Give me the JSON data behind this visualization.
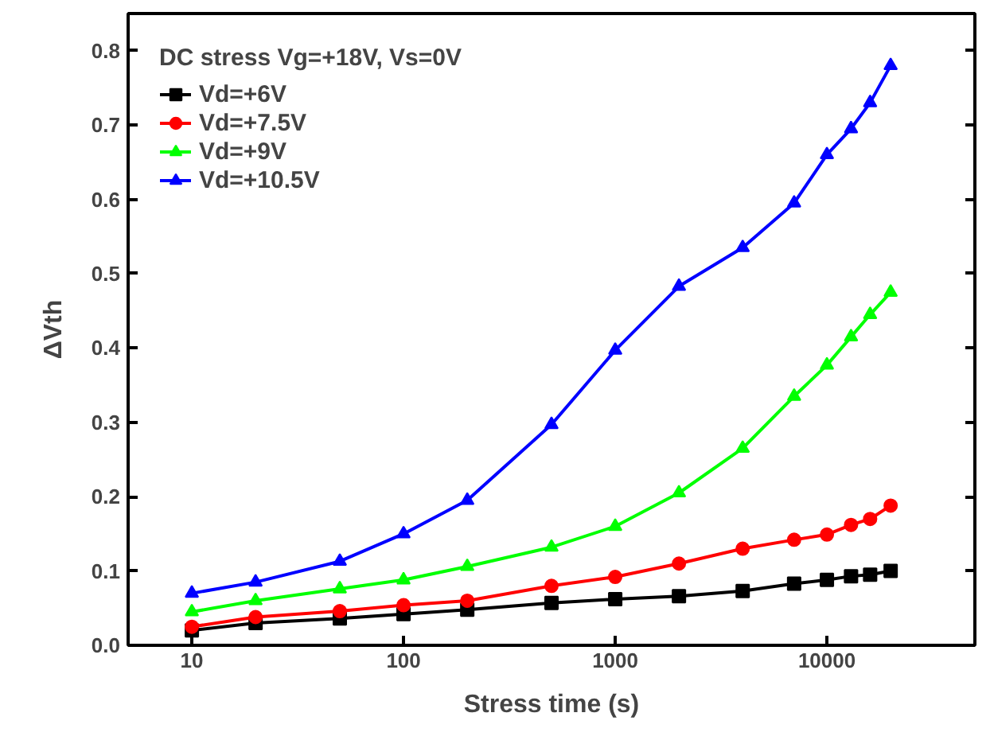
{
  "chart_data": {
    "type": "line",
    "xlabel": "Stress time (s)",
    "ylabel": "ΔVth",
    "legend_title": "DC stress Vg=+18V, Vs=0V",
    "x": [
      10,
      20,
      50,
      100,
      200,
      500,
      1000,
      2000,
      4000,
      7000,
      10000,
      13000,
      16000,
      20000
    ],
    "series": [
      {
        "name": "Vd=+6V",
        "color": "#000000",
        "marker": "square",
        "values": [
          0.02,
          0.03,
          0.036,
          0.042,
          0.048,
          0.057,
          0.062,
          0.066,
          0.073,
          0.083,
          0.088,
          0.093,
          0.095,
          0.1
        ]
      },
      {
        "name": "Vd=+7.5V",
        "color": "#ff0000",
        "marker": "circle",
        "values": [
          0.025,
          0.038,
          0.046,
          0.054,
          0.06,
          0.08,
          0.092,
          0.11,
          0.13,
          0.142,
          0.149,
          0.162,
          0.17,
          0.188
        ]
      },
      {
        "name": "Vd=+9V",
        "color": "#00ff00",
        "marker": "triangle",
        "values": [
          0.045,
          0.06,
          0.076,
          0.088,
          0.106,
          0.132,
          0.16,
          0.205,
          0.265,
          0.335,
          0.377,
          0.415,
          0.445,
          0.475
        ]
      },
      {
        "name": "Vd=+10.5V",
        "color": "#0000ff",
        "marker": "triangle",
        "values": [
          0.07,
          0.085,
          0.113,
          0.15,
          0.195,
          0.297,
          0.397,
          0.483,
          0.535,
          0.595,
          0.66,
          0.695,
          0.73,
          0.78
        ]
      }
    ],
    "log": "x",
    "xlim": [
      5,
      50000
    ],
    "xticks": [
      10,
      100,
      1000,
      10000
    ],
    "ylim": [
      0,
      0.85
    ],
    "yticks": [
      {
        "value": 0,
        "label": "0.0"
      },
      0.1,
      0.2,
      0.3,
      0.4,
      0.5,
      0.6,
      0.7,
      0.8
    ],
    "grid": false,
    "legend": "top left",
    "line_style": "solid"
  }
}
